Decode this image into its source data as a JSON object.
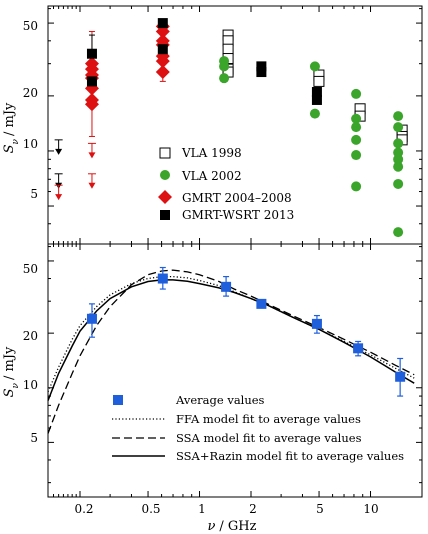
{
  "chart_data": [
    {
      "type": "scatter",
      "ylabel": "S_ν / mJy",
      "xscale": "log",
      "yscale": "log",
      "xlim": [
        0.13,
        20
      ],
      "ylim": [
        3.1,
        62
      ],
      "yticks": [
        5,
        10,
        20,
        50
      ],
      "legend_position": "center",
      "series": [
        {
          "name": "VLA 1998",
          "marker": "open-square",
          "color": "#000000",
          "points": [
            [
              1.43,
              43
            ],
            [
              1.43,
              40
            ],
            [
              1.43,
              36
            ],
            [
              1.43,
              32
            ],
            [
              1.43,
              28
            ],
            [
              1.43,
              27
            ],
            [
              4.86,
              26
            ],
            [
              4.86,
              24
            ],
            [
              8.46,
              17
            ],
            [
              8.46,
              15.5
            ],
            [
              14.9,
              13
            ],
            [
              14.9,
              12
            ],
            [
              14.9,
              11.5
            ]
          ]
        },
        {
          "name": "VLA 2002",
          "marker": "filled-circle",
          "color": "#3aa52a",
          "points": [
            [
              1.43,
              31
            ],
            [
              1.43,
              29
            ],
            [
              1.43,
              25
            ],
            [
              4.86,
              29
            ],
            [
              4.86,
              16
            ],
            [
              8.46,
              20.5
            ],
            [
              8.46,
              15
            ],
            [
              8.46,
              13.5
            ],
            [
              8.46,
              11.5
            ],
            [
              8.46,
              9.5
            ],
            [
              8.46,
              6.4
            ],
            [
              14.9,
              15.5
            ],
            [
              14.9,
              13.5
            ],
            [
              14.9,
              11
            ],
            [
              14.9,
              9.8
            ],
            [
              14.9,
              9
            ],
            [
              14.9,
              8.2
            ],
            [
              14.9,
              6.6
            ],
            [
              14.9,
              3.6
            ]
          ]
        },
        {
          "name": "GMRT 2004–2008",
          "marker": "filled-diamond",
          "color": "#dd1111",
          "points": [
            [
              0.235,
              30
            ],
            [
              0.235,
              28
            ],
            [
              0.235,
              26
            ],
            [
              0.235,
              25
            ],
            [
              0.235,
              22
            ],
            [
              0.235,
              19
            ],
            [
              0.235,
              18
            ],
            [
              0.61,
              48
            ],
            [
              0.61,
              45
            ],
            [
              0.61,
              40
            ],
            [
              0.61,
              38
            ],
            [
              0.61,
              33
            ],
            [
              0.61,
              31
            ],
            [
              0.61,
              27
            ]
          ]
        },
        {
          "name": "GMRT-WSRT 2013",
          "marker": "filled-square",
          "color": "#000000",
          "points": [
            [
              0.235,
              34
            ],
            [
              0.235,
              24
            ],
            [
              0.61,
              50
            ],
            [
              0.61,
              36
            ],
            [
              2.3,
              29
            ],
            [
              2.3,
              27
            ],
            [
              4.86,
              21
            ],
            [
              4.86,
              19
            ]
          ]
        }
      ],
      "red_errorbars": [
        {
          "x": 0.235,
          "low": 12,
          "high": 45
        },
        {
          "x": 0.61,
          "low": 24,
          "high": 52
        }
      ],
      "black_errorbars": [
        {
          "x": 0.235,
          "low": 22,
          "high": 43
        },
        {
          "x": 1.43,
          "low": 24,
          "high": 28
        }
      ],
      "upper_limits": [
        {
          "x": 0.15,
          "value": 11.5,
          "color": "#000000"
        },
        {
          "x": 0.15,
          "value": 7.5,
          "color": "#000000"
        },
        {
          "x": 0.15,
          "value": 6.5,
          "color": "#dd1111"
        },
        {
          "x": 0.235,
          "value": 11,
          "color": "#dd1111"
        },
        {
          "x": 0.235,
          "value": 7.5,
          "color": "#dd1111"
        }
      ]
    },
    {
      "type": "scatter",
      "xlabel": "ν / GHz",
      "ylabel": "S_ν / mJy",
      "xscale": "log",
      "yscale": "log",
      "xlim": [
        0.13,
        20
      ],
      "ylim": [
        2.5,
        62
      ],
      "xticks": [
        0.2,
        0.5,
        1,
        2,
        5,
        10
      ],
      "yticks": [
        5,
        10,
        20,
        50
      ],
      "legend_position": "lower-left",
      "series": [
        {
          "name": "Average values",
          "marker": "filled-square",
          "color": "#1f5fdc",
          "points": [
            {
              "x": 0.235,
              "y": 24,
              "ylow": 19,
              "yhigh": 29
            },
            {
              "x": 0.61,
              "y": 40,
              "ylow": 35,
              "yhigh": 46
            },
            {
              "x": 1.43,
              "y": 36,
              "ylow": 32,
              "yhigh": 41
            },
            {
              "x": 2.3,
              "y": 29,
              "ylow": 28,
              "yhigh": 30
            },
            {
              "x": 4.86,
              "y": 22.5,
              "ylow": 20,
              "yhigh": 25
            },
            {
              "x": 8.46,
              "y": 16.5,
              "ylow": 15,
              "yhigh": 18
            },
            {
              "x": 14.9,
              "y": 11.5,
              "ylow": 9,
              "yhigh": 14.5
            }
          ]
        },
        {
          "name": "FFA model fit to average values",
          "style": "dotted",
          "x": [
            0.13,
            0.15,
            0.18,
            0.2,
            0.25,
            0.3,
            0.4,
            0.5,
            0.6,
            0.7,
            0.85,
            1.0,
            1.3,
            1.6,
            2.0,
            2.5,
            3.5,
            5.0,
            7.0,
            10.0,
            14.0,
            18.0
          ],
          "y": [
            9.5,
            13,
            18.5,
            22,
            28,
            32.5,
            37.5,
            40,
            41,
            41,
            40.3,
            39,
            36.5,
            33.8,
            31,
            28.5,
            24.5,
            21,
            18,
            15.2,
            12.8,
            11.3
          ]
        },
        {
          "name": "SSA model fit to average values",
          "style": "dashed",
          "x": [
            0.13,
            0.15,
            0.18,
            0.2,
            0.25,
            0.3,
            0.4,
            0.5,
            0.6,
            0.7,
            0.85,
            1.0,
            1.3,
            1.6,
            2.0,
            2.5,
            3.5,
            5.0,
            7.0,
            10.0,
            14.0,
            18.0
          ],
          "y": [
            5.6,
            8,
            12,
            15,
            22,
            28,
            37,
            42,
            44,
            44.5,
            43.5,
            42,
            38.5,
            35,
            32,
            29,
            25,
            21.5,
            18.5,
            15.7,
            13.3,
            11.8
          ]
        },
        {
          "name": "SSA+Razin model fit to average values",
          "style": "solid",
          "x": [
            0.13,
            0.15,
            0.18,
            0.2,
            0.25,
            0.3,
            0.4,
            0.5,
            0.6,
            0.7,
            0.85,
            1.0,
            1.3,
            1.6,
            2.0,
            2.5,
            3.5,
            5.0,
            7.0,
            10.0,
            14.0,
            18.0
          ],
          "y": [
            8.5,
            12,
            17,
            20.5,
            26.5,
            31,
            36,
            38.5,
            39.3,
            39.3,
            38.6,
            37.5,
            35.5,
            33.5,
            31,
            28.5,
            24.5,
            21,
            17.8,
            14.8,
            12.2,
            10.6
          ]
        }
      ]
    }
  ],
  "labels": {
    "ylabel_top": "S",
    "ylabel_top_sub": "ν",
    "ylabel_top_unit": "/ mJy",
    "ylabel_bottom": "S",
    "ylabel_bottom_sub": "ν",
    "ylabel_bottom_unit": "/ mJy",
    "xlabel_nu": "ν",
    "xlabel_unit": "/ GHz",
    "xticks": [
      "0.2",
      "0.5",
      "1",
      "2",
      "5",
      "10"
    ],
    "yticks_top": [
      "5",
      "10",
      "20",
      "50"
    ],
    "yticks_bottom": [
      "5",
      "10",
      "20",
      "50"
    ],
    "legend_top": [
      "VLA 1998",
      "VLA 2002",
      "GMRT 2004–2008",
      "GMRT-WSRT 2013"
    ],
    "legend_bottom": [
      "Average values",
      "FFA model fit to average values",
      "SSA model fit to average values",
      "SSA+Razin model fit to average values"
    ]
  },
  "colors": {
    "green": "#3aa52a",
    "red": "#dd1111",
    "blue": "#1f5fdc",
    "black": "#000000"
  }
}
